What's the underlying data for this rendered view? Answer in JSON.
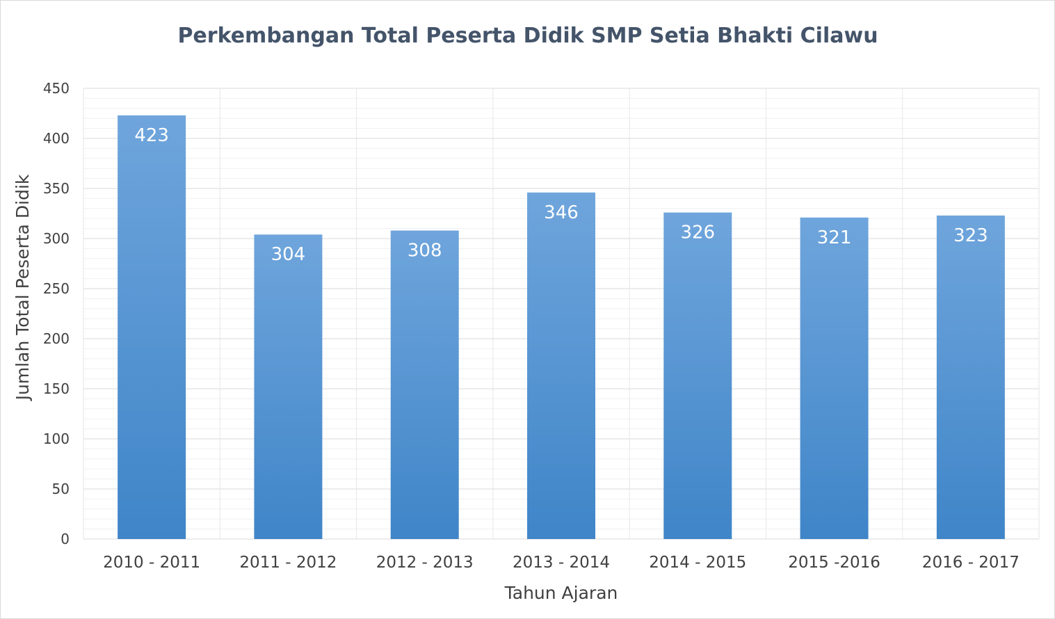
{
  "chart_data": {
    "type": "bar",
    "title": "Perkembangan Total Peserta Didik SMP Setia Bhakti Cilawu",
    "xlabel": "Tahun Ajaran",
    "ylabel": "Jumlah Total Peserta Didik",
    "categories": [
      "2010 - 2011",
      "2011 - 2012",
      "2012 - 2013",
      "2013 - 2014",
      "2014 - 2015",
      "2015 -2016",
      "2016 - 2017"
    ],
    "values": [
      423,
      304,
      308,
      346,
      326,
      321,
      323
    ],
    "ylim": [
      0,
      450
    ],
    "yticks": [
      0,
      50,
      100,
      150,
      200,
      250,
      300,
      350,
      400,
      450
    ],
    "grid": true,
    "legend": "none",
    "colors": {
      "bar_top": "#6fa5dc",
      "bar_bottom": "#3f85c8",
      "grid": "#e6e6e6"
    }
  }
}
